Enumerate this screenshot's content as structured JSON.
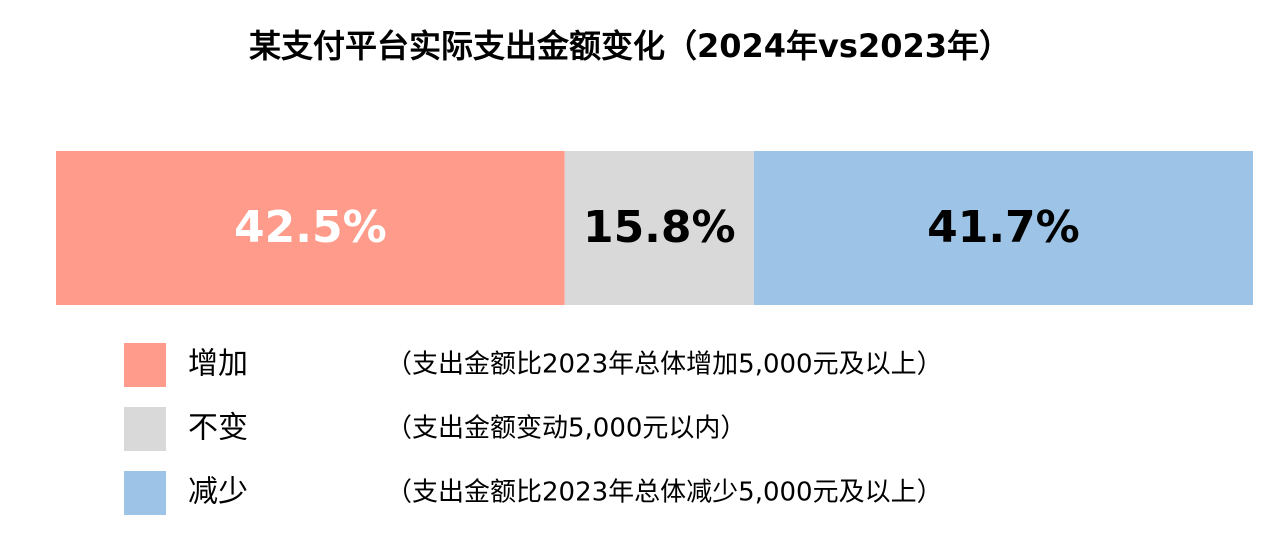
{
  "chart_data": {
    "type": "stacked-bar",
    "title": "某支付平台实际支出金额变化（2024年vs2023年）",
    "xlim": [
      0,
      100
    ],
    "series": [
      {
        "name": "增加",
        "description": "（支出金额比2023年总体增加5,000元及以上）",
        "color": "#ff9b8b",
        "label_color": "#ffffff",
        "values": [
          42.5
        ],
        "value_labels": [
          "42.5%"
        ]
      },
      {
        "name": "不变",
        "description": "（支出金额变动5,000元以内）",
        "color": "#d9d9d9",
        "label_color": "#000000",
        "values": [
          15.8
        ],
        "value_labels": [
          "15.8%"
        ]
      },
      {
        "name": "减少",
        "description": "（支出金额比2023年总体减少5,000元及以上）",
        "color": "#9dc3e6",
        "label_color": "#000000",
        "values": [
          41.7
        ],
        "value_labels": [
          "41.7%"
        ]
      }
    ]
  }
}
